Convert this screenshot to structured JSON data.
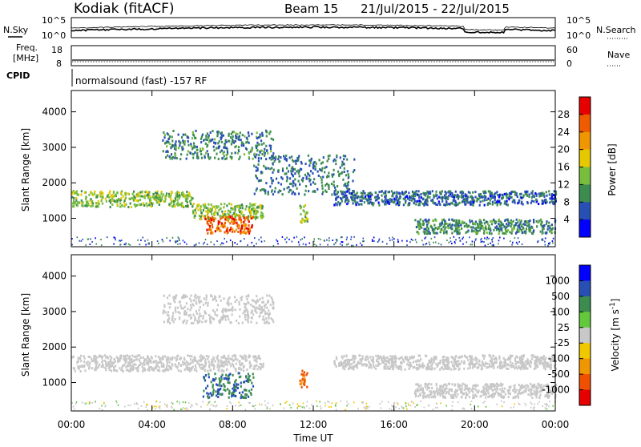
{
  "header": {
    "station": "Kodiak (fitACF)",
    "beam": "Beam 15",
    "date_range": "21/Jul/2015 - 22/Jul/2015"
  },
  "top_panels": {
    "nsky_label": "N.Sky",
    "nsearch_label": "N.Search",
    "noise_ticks": [
      "10^5",
      "10^0"
    ],
    "freq_label": "Freq.",
    "freq_unit": "[MHz]",
    "freq_ticks": [
      "18",
      "8"
    ],
    "nave_label": "Nave",
    "nave_ticks": [
      "60",
      "0"
    ],
    "cpid_label": "CPID",
    "cpid_text": "normalsound (fast) -157 RF"
  },
  "x_axis": {
    "label": "Time UT",
    "ticks": [
      "00:00",
      "04:00",
      "08:00",
      "12:00",
      "16:00",
      "20:00",
      "00:00"
    ]
  },
  "colors": {
    "power_scale": [
      "#0000ff",
      "#2850b4",
      "#3c8c50",
      "#78be3c",
      "#e6c800",
      "#f09600",
      "#f05a00",
      "#e60000"
    ],
    "velocity_scale": [
      "#0000ff",
      "#2850b4",
      "#3c8c50",
      "#64c83c",
      "#c8c8c8",
      "#f0c800",
      "#f09600",
      "#f05000",
      "#e60000"
    ]
  },
  "chart_data": [
    {
      "type": "heatmap",
      "title": "Power",
      "ylabel": "Slant Range [km]",
      "xlabel": "",
      "xlim": [
        0,
        24
      ],
      "ylim": [
        200,
        4600
      ],
      "yticks": [
        1000,
        2000,
        3000,
        4000
      ],
      "colorbar": {
        "label": "Power [dB]",
        "ticks": [
          4,
          8,
          12,
          16,
          20,
          24,
          28
        ]
      },
      "regions": [
        {
          "x": [
            0.0,
            6.0
          ],
          "y": [
            1350,
            1800
          ],
          "value": 14
        },
        {
          "x": [
            6.0,
            9.5
          ],
          "y": [
            1000,
            1450
          ],
          "value": 14
        },
        {
          "x": [
            6.5,
            9.0
          ],
          "y": [
            600,
            1100
          ],
          "value": 26
        },
        {
          "x": [
            4.5,
            10.0
          ],
          "y": [
            2700,
            3500
          ],
          "value": 9
        },
        {
          "x": [
            9.0,
            14.0
          ],
          "y": [
            1700,
            2800
          ],
          "value": 8
        },
        {
          "x": [
            13.0,
            24.0
          ],
          "y": [
            1400,
            1800
          ],
          "value": 7
        },
        {
          "x": [
            17.0,
            24.0
          ],
          "y": [
            600,
            1000
          ],
          "value": 10
        },
        {
          "x": [
            11.3,
            11.7
          ],
          "y": [
            900,
            1400
          ],
          "value": 15
        }
      ]
    },
    {
      "type": "heatmap",
      "title": "Velocity",
      "ylabel": "Slant Range [km]",
      "xlabel": "Time UT",
      "xlim": [
        0,
        24
      ],
      "ylim": [
        200,
        4600
      ],
      "yticks": [
        1000,
        2000,
        3000,
        4000
      ],
      "colorbar": {
        "label": "Velocity [m s^-1]",
        "ticks": [
          1000,
          500,
          100,
          25,
          -25,
          -100,
          -500,
          -1000
        ]
      },
      "regions": [
        {
          "x": [
            0.0,
            9.5
          ],
          "y": [
            1350,
            1800
          ],
          "value": 0
        },
        {
          "x": [
            4.5,
            10.0
          ],
          "y": [
            2700,
            3500
          ],
          "value": 0
        },
        {
          "x": [
            13.0,
            24.0
          ],
          "y": [
            1400,
            1800
          ],
          "value": 0
        },
        {
          "x": [
            17.0,
            24.0
          ],
          "y": [
            600,
            1000
          ],
          "value": 0
        },
        {
          "x": [
            6.5,
            9.0
          ],
          "y": [
            600,
            1300
          ],
          "value": 300
        },
        {
          "x": [
            11.3,
            11.7
          ],
          "y": [
            900,
            1400
          ],
          "value": -300
        }
      ]
    }
  ]
}
